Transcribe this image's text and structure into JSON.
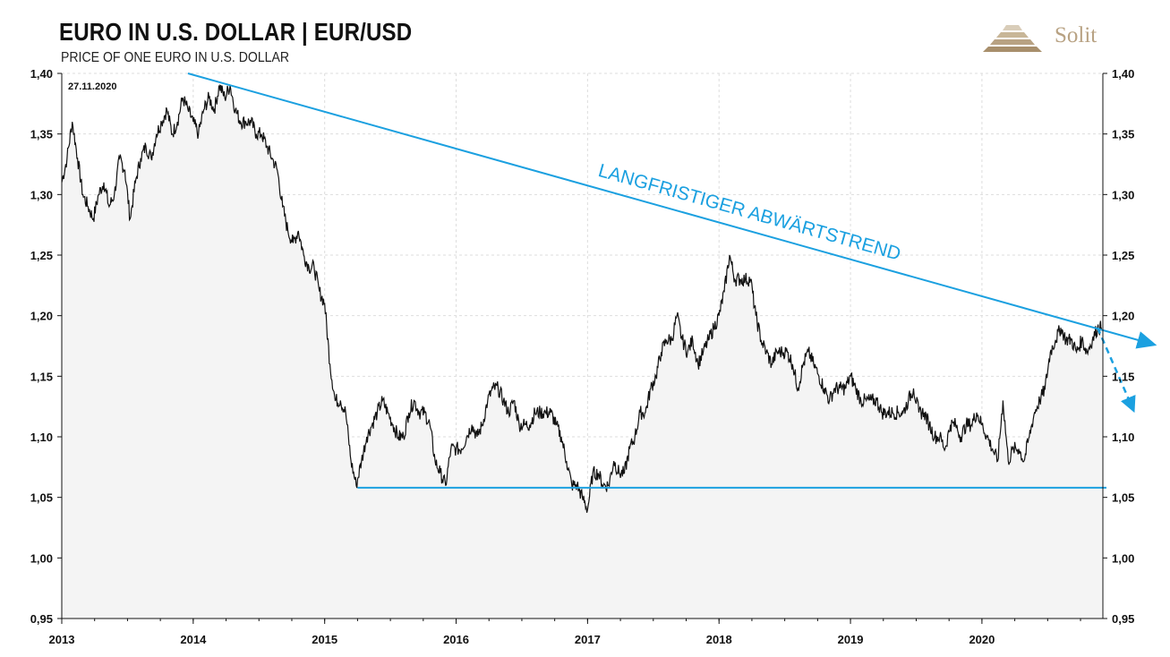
{
  "header": {
    "title": "EURO IN U.S. DOLLAR | EUR/USD",
    "subtitle": "PRICE OF ONE EURO IN U.S. DOLLAR",
    "date": "27.11.2020"
  },
  "logo": {
    "text": "Solit",
    "color": "#b8a283"
  },
  "colors": {
    "line": "#111111",
    "area": "#f4f4f4",
    "trend": "#1ba0e0",
    "grid": "#dddddd"
  },
  "chart_data": {
    "type": "line",
    "title": "EURO IN U.S. DOLLAR | EUR/USD",
    "subtitle": "PRICE OF ONE EURO IN U.S. DOLLAR",
    "xlabel": "",
    "ylabel": "",
    "xlim": [
      2013.0,
      2020.92
    ],
    "ylim": [
      0.95,
      1.4
    ],
    "grid": true,
    "x_ticks": [
      {
        "value": 2013,
        "label": "2013"
      },
      {
        "value": 2014,
        "label": "2014"
      },
      {
        "value": 2015,
        "label": "2015"
      },
      {
        "value": 2016,
        "label": "2016"
      },
      {
        "value": 2017,
        "label": "2017"
      },
      {
        "value": 2018,
        "label": "2018"
      },
      {
        "value": 2019,
        "label": "2019"
      },
      {
        "value": 2020,
        "label": "2020"
      }
    ],
    "y_ticks": [
      {
        "value": 1.4,
        "label": "1,40"
      },
      {
        "value": 1.35,
        "label": "1,35"
      },
      {
        "value": 1.3,
        "label": "1,30"
      },
      {
        "value": 1.25,
        "label": "1,25"
      },
      {
        "value": 1.2,
        "label": "1,20"
      },
      {
        "value": 1.15,
        "label": "1,15"
      },
      {
        "value": 1.1,
        "label": "1,10"
      },
      {
        "value": 1.05,
        "label": "1,05"
      },
      {
        "value": 1.0,
        "label": "1,00"
      },
      {
        "value": 0.95,
        "label": "0,95"
      }
    ],
    "series": [
      {
        "values": [
          [
            2013.0,
            1.31
          ],
          [
            2013.04,
            1.33
          ],
          [
            2013.08,
            1.36
          ],
          [
            2013.12,
            1.33
          ],
          [
            2013.16,
            1.3
          ],
          [
            2013.2,
            1.29
          ],
          [
            2013.24,
            1.28
          ],
          [
            2013.28,
            1.3
          ],
          [
            2013.32,
            1.31
          ],
          [
            2013.36,
            1.29
          ],
          [
            2013.4,
            1.3
          ],
          [
            2013.44,
            1.33
          ],
          [
            2013.48,
            1.32
          ],
          [
            2013.52,
            1.28
          ],
          [
            2013.56,
            1.31
          ],
          [
            2013.6,
            1.33
          ],
          [
            2013.64,
            1.34
          ],
          [
            2013.68,
            1.33
          ],
          [
            2013.72,
            1.35
          ],
          [
            2013.76,
            1.36
          ],
          [
            2013.8,
            1.37
          ],
          [
            2013.84,
            1.35
          ],
          [
            2013.88,
            1.36
          ],
          [
            2013.92,
            1.38
          ],
          [
            2013.96,
            1.37
          ],
          [
            2014.0,
            1.36
          ],
          [
            2014.04,
            1.35
          ],
          [
            2014.08,
            1.37
          ],
          [
            2014.12,
            1.38
          ],
          [
            2014.16,
            1.37
          ],
          [
            2014.2,
            1.39
          ],
          [
            2014.24,
            1.38
          ],
          [
            2014.28,
            1.39
          ],
          [
            2014.32,
            1.37
          ],
          [
            2014.36,
            1.36
          ],
          [
            2014.4,
            1.36
          ],
          [
            2014.44,
            1.36
          ],
          [
            2014.48,
            1.35
          ],
          [
            2014.52,
            1.35
          ],
          [
            2014.56,
            1.34
          ],
          [
            2014.6,
            1.33
          ],
          [
            2014.64,
            1.32
          ],
          [
            2014.68,
            1.29
          ],
          [
            2014.72,
            1.27
          ],
          [
            2014.76,
            1.26
          ],
          [
            2014.8,
            1.27
          ],
          [
            2014.84,
            1.25
          ],
          [
            2014.88,
            1.24
          ],
          [
            2014.92,
            1.24
          ],
          [
            2014.96,
            1.22
          ],
          [
            2015.0,
            1.21
          ],
          [
            2015.04,
            1.16
          ],
          [
            2015.08,
            1.13
          ],
          [
            2015.12,
            1.13
          ],
          [
            2015.16,
            1.12
          ],
          [
            2015.2,
            1.08
          ],
          [
            2015.24,
            1.06
          ],
          [
            2015.28,
            1.08
          ],
          [
            2015.32,
            1.1
          ],
          [
            2015.36,
            1.11
          ],
          [
            2015.4,
            1.12
          ],
          [
            2015.44,
            1.13
          ],
          [
            2015.48,
            1.12
          ],
          [
            2015.52,
            1.11
          ],
          [
            2015.56,
            1.1
          ],
          [
            2015.6,
            1.1
          ],
          [
            2015.64,
            1.12
          ],
          [
            2015.68,
            1.13
          ],
          [
            2015.72,
            1.12
          ],
          [
            2015.76,
            1.12
          ],
          [
            2015.8,
            1.11
          ],
          [
            2015.84,
            1.08
          ],
          [
            2015.88,
            1.07
          ],
          [
            2015.92,
            1.06
          ],
          [
            2015.96,
            1.09
          ],
          [
            2016.0,
            1.09
          ],
          [
            2016.04,
            1.09
          ],
          [
            2016.08,
            1.1
          ],
          [
            2016.12,
            1.11
          ],
          [
            2016.16,
            1.1
          ],
          [
            2016.2,
            1.11
          ],
          [
            2016.24,
            1.13
          ],
          [
            2016.28,
            1.14
          ],
          [
            2016.32,
            1.14
          ],
          [
            2016.36,
            1.13
          ],
          [
            2016.4,
            1.12
          ],
          [
            2016.44,
            1.13
          ],
          [
            2016.48,
            1.11
          ],
          [
            2016.52,
            1.11
          ],
          [
            2016.56,
            1.11
          ],
          [
            2016.6,
            1.12
          ],
          [
            2016.64,
            1.12
          ],
          [
            2016.68,
            1.12
          ],
          [
            2016.72,
            1.12
          ],
          [
            2016.76,
            1.11
          ],
          [
            2016.8,
            1.1
          ],
          [
            2016.84,
            1.08
          ],
          [
            2016.88,
            1.06
          ],
          [
            2016.92,
            1.06
          ],
          [
            2016.96,
            1.05
          ],
          [
            2017.0,
            1.04
          ],
          [
            2017.04,
            1.07
          ],
          [
            2017.08,
            1.07
          ],
          [
            2017.12,
            1.06
          ],
          [
            2017.16,
            1.06
          ],
          [
            2017.2,
            1.08
          ],
          [
            2017.24,
            1.07
          ],
          [
            2017.28,
            1.07
          ],
          [
            2017.32,
            1.09
          ],
          [
            2017.36,
            1.1
          ],
          [
            2017.4,
            1.12
          ],
          [
            2017.44,
            1.12
          ],
          [
            2017.48,
            1.14
          ],
          [
            2017.52,
            1.15
          ],
          [
            2017.56,
            1.17
          ],
          [
            2017.6,
            1.18
          ],
          [
            2017.64,
            1.18
          ],
          [
            2017.68,
            1.2
          ],
          [
            2017.72,
            1.18
          ],
          [
            2017.76,
            1.17
          ],
          [
            2017.8,
            1.18
          ],
          [
            2017.84,
            1.16
          ],
          [
            2017.88,
            1.17
          ],
          [
            2017.92,
            1.18
          ],
          [
            2017.96,
            1.19
          ],
          [
            2018.0,
            1.2
          ],
          [
            2018.04,
            1.22
          ],
          [
            2018.08,
            1.25
          ],
          [
            2018.12,
            1.23
          ],
          [
            2018.16,
            1.23
          ],
          [
            2018.2,
            1.23
          ],
          [
            2018.24,
            1.23
          ],
          [
            2018.28,
            1.2
          ],
          [
            2018.32,
            1.18
          ],
          [
            2018.36,
            1.17
          ],
          [
            2018.4,
            1.16
          ],
          [
            2018.44,
            1.17
          ],
          [
            2018.48,
            1.17
          ],
          [
            2018.52,
            1.17
          ],
          [
            2018.56,
            1.16
          ],
          [
            2018.6,
            1.14
          ],
          [
            2018.64,
            1.16
          ],
          [
            2018.68,
            1.17
          ],
          [
            2018.72,
            1.16
          ],
          [
            2018.76,
            1.15
          ],
          [
            2018.8,
            1.14
          ],
          [
            2018.84,
            1.13
          ],
          [
            2018.88,
            1.14
          ],
          [
            2018.92,
            1.14
          ],
          [
            2018.96,
            1.14
          ],
          [
            2019.0,
            1.15
          ],
          [
            2019.04,
            1.14
          ],
          [
            2019.08,
            1.13
          ],
          [
            2019.12,
            1.13
          ],
          [
            2019.16,
            1.13
          ],
          [
            2019.2,
            1.13
          ],
          [
            2019.24,
            1.12
          ],
          [
            2019.28,
            1.12
          ],
          [
            2019.32,
            1.12
          ],
          [
            2019.36,
            1.12
          ],
          [
            2019.4,
            1.12
          ],
          [
            2019.44,
            1.13
          ],
          [
            2019.48,
            1.14
          ],
          [
            2019.52,
            1.12
          ],
          [
            2019.56,
            1.12
          ],
          [
            2019.6,
            1.11
          ],
          [
            2019.64,
            1.1
          ],
          [
            2019.68,
            1.1
          ],
          [
            2019.72,
            1.09
          ],
          [
            2019.76,
            1.11
          ],
          [
            2019.8,
            1.11
          ],
          [
            2019.84,
            1.1
          ],
          [
            2019.88,
            1.11
          ],
          [
            2019.92,
            1.11
          ],
          [
            2019.96,
            1.12
          ],
          [
            2020.0,
            1.11
          ],
          [
            2020.04,
            1.1
          ],
          [
            2020.08,
            1.09
          ],
          [
            2020.12,
            1.08
          ],
          [
            2020.16,
            1.13
          ],
          [
            2020.2,
            1.08
          ],
          [
            2020.24,
            1.09
          ],
          [
            2020.28,
            1.09
          ],
          [
            2020.32,
            1.08
          ],
          [
            2020.36,
            1.1
          ],
          [
            2020.4,
            1.12
          ],
          [
            2020.44,
            1.13
          ],
          [
            2020.48,
            1.14
          ],
          [
            2020.52,
            1.17
          ],
          [
            2020.56,
            1.18
          ],
          [
            2020.6,
            1.19
          ],
          [
            2020.64,
            1.18
          ],
          [
            2020.68,
            1.18
          ],
          [
            2020.72,
            1.17
          ],
          [
            2020.76,
            1.18
          ],
          [
            2020.8,
            1.17
          ],
          [
            2020.84,
            1.18
          ],
          [
            2020.88,
            1.19
          ],
          [
            2020.91,
            1.19
          ]
        ]
      }
    ],
    "annotations": [
      {
        "type": "trendline",
        "label": "LANGFRISTIGER ABWÄRTSTREND",
        "from": [
          2013.96,
          1.4
        ],
        "to": [
          2020.93,
          1.18
        ],
        "arrow": true
      },
      {
        "type": "hline",
        "y": 1.058,
        "from_x": 2015.25,
        "to_x": 2020.92
      },
      {
        "type": "dashed-arrow",
        "from": [
          2020.88,
          1.19
        ],
        "to": [
          2020.98,
          1.13
        ]
      }
    ]
  }
}
